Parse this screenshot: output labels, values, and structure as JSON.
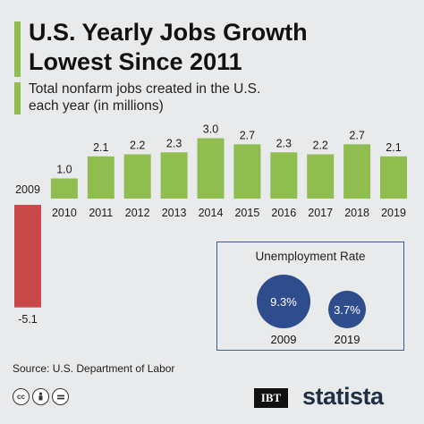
{
  "header": {
    "title_line1": "U.S. Yearly Jobs Growth",
    "title_line2": "Lowest Since 2011",
    "subtitle_line1": "Total nonfarm jobs created in the U.S.",
    "subtitle_line2": "each year (in millions)"
  },
  "chart_data": {
    "type": "bar",
    "title": "U.S. Yearly Jobs Growth Lowest Since 2011",
    "subtitle": "Total nonfarm jobs created in the U.S. each year (in millions)",
    "categories": [
      "2009",
      "2010",
      "2011",
      "2012",
      "2013",
      "2014",
      "2015",
      "2016",
      "2017",
      "2018",
      "2019"
    ],
    "values": [
      -5.1,
      1.0,
      2.1,
      2.2,
      2.3,
      3.0,
      2.7,
      2.3,
      2.2,
      2.7,
      2.1
    ],
    "value_labels": [
      "-5.1",
      "1.0",
      "2.1",
      "2.2",
      "2.3",
      "3.0",
      "2.7",
      "2.3",
      "2.2",
      "2.7",
      "2.1"
    ],
    "ylim": [
      -5.1,
      3.0
    ],
    "grid": false,
    "colors": {
      "positive": "#8fbd4f",
      "negative": "#c9484a",
      "highlight": "#8fbd4f"
    }
  },
  "unemployment": {
    "title": "Unemployment Rate",
    "items": [
      {
        "year": "2009",
        "value": 9.3,
        "label": "9.3%"
      },
      {
        "year": "2019",
        "value": 3.7,
        "label": "3.7%"
      }
    ],
    "color": "#2f4c8d"
  },
  "footer": {
    "source": "Source: U.S. Department of Labor",
    "license_icons": [
      "cc",
      "by",
      "nd"
    ],
    "ibt_logo": "IBT",
    "statista_logo": "statista"
  }
}
